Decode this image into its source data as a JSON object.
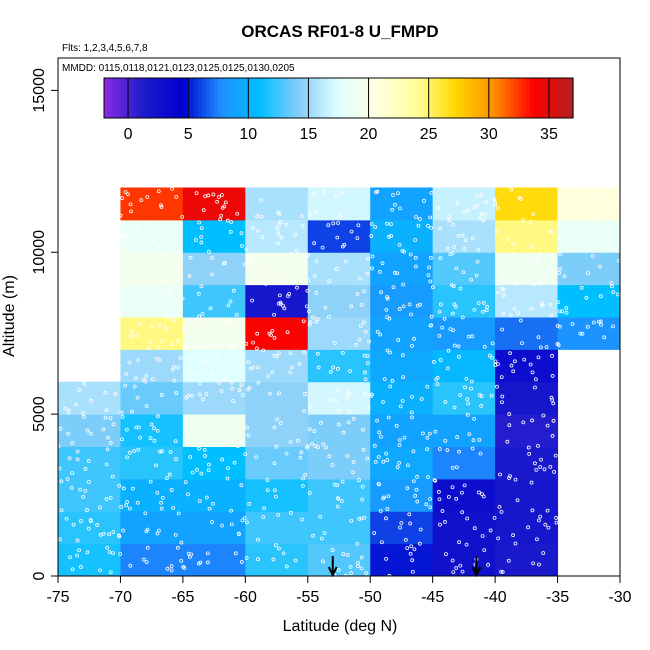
{
  "chart_data": {
    "type": "heatmap",
    "title": "ORCAS RF01-8 U_FMPD",
    "flights_note": "Flts: 1,2,3,4,5,6,7,8",
    "mmdd_note": "MMDD: 0115,0118,0121,0123,0125,0125,0130,0205",
    "xlabel": "Latitude (deg N)",
    "ylabel": "Altitude (m)",
    "xlim": [
      -75,
      -30
    ],
    "ylim": [
      0,
      16000
    ],
    "x_ticks": [
      -75,
      -70,
      -65,
      -60,
      -55,
      -50,
      -45,
      -40,
      -35,
      -30
    ],
    "x_tick_labels": [
      "-75",
      "-70",
      "-65",
      "-60",
      "-55",
      "-50",
      "-45",
      "-40",
      "-35",
      "-30"
    ],
    "y_ticks": [
      0,
      5000,
      10000,
      15000
    ],
    "y_tick_labels": [
      "0",
      "5000",
      "10000",
      "15000"
    ],
    "colorbar": {
      "range": [
        -2,
        37
      ],
      "ticks": [
        0,
        5,
        10,
        15,
        20,
        25,
        30,
        35
      ],
      "tick_labels": [
        "0",
        "5",
        "10",
        "15",
        "20",
        "25",
        "30",
        "35"
      ],
      "colors": [
        "#8a2be2",
        "#1c1ccc",
        "#0000cd",
        "#1e90ff",
        "#00bfff",
        "#87cefa",
        "#e0ffff",
        "#ffffe0",
        "#ffff99",
        "#ffd700",
        "#ff8c00",
        "#ff0000",
        "#b22222"
      ]
    },
    "bin_x_edges": [
      -75,
      -70,
      -65,
      -60,
      -55,
      -50,
      -45,
      -40,
      -35,
      -30
    ],
    "bin_y_edges": [
      0,
      1000,
      2000,
      3000,
      4000,
      5000,
      6000,
      7000,
      8000,
      9000,
      10000,
      11000,
      12000
    ],
    "cells": [
      [
        11.5,
        7.5,
        7.5,
        12.0,
        13.0,
        5.0,
        2.5,
        1.5,
        null
      ],
      [
        12.0,
        9.0,
        9.0,
        12.5,
        12.5,
        6.0,
        2.5,
        2.0,
        null
      ],
      [
        12.5,
        10.0,
        10.0,
        11.5,
        12.5,
        8.5,
        3.0,
        2.0,
        null
      ],
      [
        12.5,
        12.0,
        11.0,
        13.5,
        14.0,
        9.5,
        7.5,
        1.5,
        null
      ],
      [
        14.0,
        11.5,
        19.0,
        14.5,
        14.0,
        9.0,
        9.0,
        1.0,
        null
      ],
      [
        15.5,
        13.5,
        15.0,
        14.5,
        17.0,
        10.0,
        12.0,
        2.0,
        null
      ],
      [
        null,
        15.0,
        17.5,
        15.0,
        12.0,
        9.5,
        10.5,
        3.0,
        null
      ],
      [
        null,
        24.5,
        19.5,
        34.0,
        15.0,
        9.0,
        8.5,
        7.0,
        8.0
      ],
      [
        null,
        18.5,
        12.5,
        2.0,
        14.5,
        8.5,
        12.0,
        16.0,
        11.0
      ],
      [
        null,
        19.5,
        14.5,
        19.5,
        15.5,
        9.0,
        13.0,
        19.0,
        14.0
      ],
      [
        null,
        18.5,
        11.0,
        16.0,
        6.0,
        10.0,
        15.5,
        24.5,
        18.5
      ],
      [
        null,
        32.5,
        34.5,
        15.5,
        17.0,
        9.0,
        16.5,
        27.0,
        21.0
      ]
    ],
    "arrows_lat": [
      -53,
      -41.5
    ]
  }
}
